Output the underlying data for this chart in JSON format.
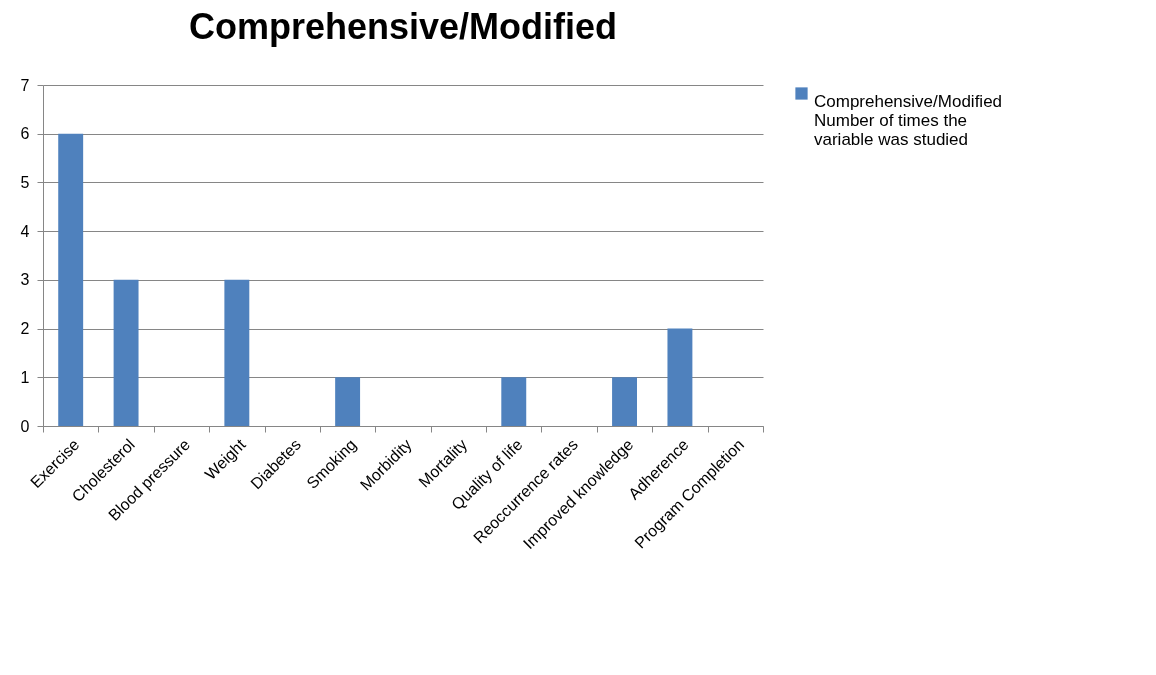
{
  "chart_data": {
    "type": "bar",
    "title": "Comprehensive/Modified",
    "categories": [
      "Exercise",
      "Cholesterol",
      "Blood pressure",
      "Weight",
      "Diabetes",
      "Smoking",
      "Morbidity",
      "Mortality",
      "Quality of life",
      "Reoccurrence rates",
      "Improved knowledge",
      "Adherence",
      "Program Completion"
    ],
    "series": [
      {
        "name": "Comprehensive/Modified Number of times the variable was studied",
        "color": "#4f81bd",
        "values": [
          6,
          3,
          0,
          3,
          0,
          1,
          0,
          0,
          1,
          0,
          1,
          2,
          0
        ]
      }
    ],
    "ylim": [
      0,
      7
    ],
    "yticks": [
      0,
      1,
      2,
      3,
      4,
      5,
      6,
      7
    ],
    "grid": "y",
    "legend": "right"
  }
}
